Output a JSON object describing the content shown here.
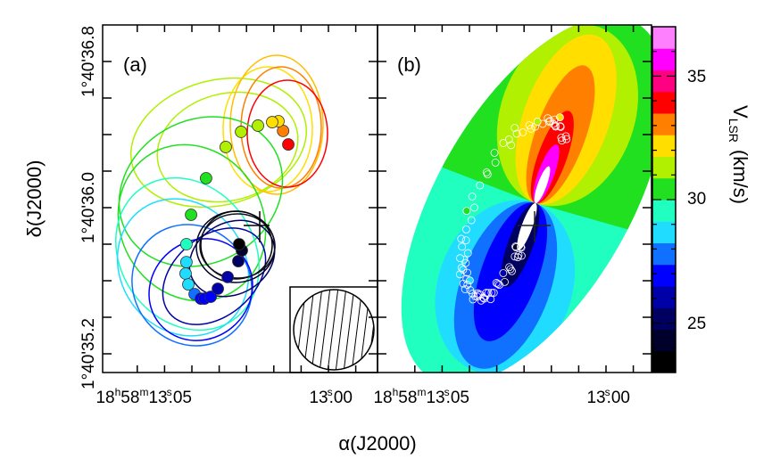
{
  "chart_data": {
    "type": "scatter",
    "panels": [
      {
        "label": "(a)",
        "description_type": "contour+scatter"
      },
      {
        "label": "(b)",
        "description_type": "filled-contour+scatter"
      }
    ],
    "xlabel": "α(J2000)",
    "ylabel": "δ(J2000)",
    "colorbar": {
      "label_main": "V",
      "label_sub": "LSR",
      "label_unit": "(km/s)",
      "range": [
        23,
        37
      ],
      "ticks": [
        25,
        30,
        35
      ],
      "tick_labels": [
        "25",
        "30",
        "35"
      ],
      "band_colors": [
        "#000000",
        "#00002a",
        "#000060",
        "#0000a8",
        "#0000ff",
        "#1070ff",
        "#20dcff",
        "#20ffc0",
        "#20e020",
        "#b0f000",
        "#ffde00",
        "#ff8000",
        "#ff0000",
        "#ff0080",
        "#ff00ff",
        "#ff80ff"
      ]
    },
    "x_axis": {
      "unit": "RA seconds (18h58m)",
      "range": [
        13.073,
        12.973
      ],
      "major_ticks": [
        {
          "value": 13.05,
          "hours": "18",
          "h": "h",
          "minutes": "58",
          "m": "m",
          "seconds": "13",
          "s": "s",
          "frac": "05"
        },
        {
          "value": 13.0,
          "seconds": "13",
          "s": "s",
          "frac": "00"
        }
      ],
      "minor_ticks": [
        13.07,
        13.06,
        13.05,
        13.04,
        13.03,
        13.02,
        13.01,
        13.0,
        12.99,
        12.98
      ]
    },
    "y_axis": {
      "unit": "Dec arcsec (1°40')",
      "range": [
        35.08,
        36.98
      ],
      "major_ticks": [
        {
          "value": 36.8,
          "label": "1°40'36.8"
        },
        {
          "value": 36.0,
          "label": "1°40'36.0"
        },
        {
          "value": 35.2,
          "label": "1°40'35.2"
        }
      ],
      "minor_ticks": [
        36.8,
        36.6,
        36.4,
        36.2,
        36.0,
        35.8,
        35.6,
        35.4,
        35.2
      ]
    },
    "panel_a_spots": [
      {
        "ra": 13.0147,
        "dec": 36.346,
        "v": 34.0
      },
      {
        "ra": 13.0166,
        "dec": 36.42,
        "v": 33.0
      },
      {
        "ra": 13.0183,
        "dec": 36.473,
        "v": 32.5
      },
      {
        "ra": 13.0206,
        "dec": 36.468,
        "v": 32.2
      },
      {
        "ra": 13.0258,
        "dec": 36.449,
        "v": 31.5
      },
      {
        "ra": 13.032,
        "dec": 36.415,
        "v": 31.3
      },
      {
        "ra": 13.0376,
        "dec": 36.332,
        "v": 31.0
      },
      {
        "ra": 13.0448,
        "dec": 36.161,
        "v": 30.3
      },
      {
        "ra": 13.0503,
        "dec": 35.961,
        "v": 30.1
      },
      {
        "ra": 13.052,
        "dec": 35.8,
        "v": 29.5
      },
      {
        "ra": 13.052,
        "dec": 35.702,
        "v": 28.8
      },
      {
        "ra": 13.0523,
        "dec": 35.639,
        "v": 28.5
      },
      {
        "ra": 13.0513,
        "dec": 35.58,
        "v": 28.3
      },
      {
        "ra": 13.049,
        "dec": 35.527,
        "v": 27.7
      },
      {
        "ra": 13.0467,
        "dec": 35.502,
        "v": 27.2
      },
      {
        "ra": 13.0454,
        "dec": 35.502,
        "v": 27.0
      },
      {
        "ra": 13.0431,
        "dec": 35.512,
        "v": 26.8
      },
      {
        "ra": 13.0405,
        "dec": 35.556,
        "v": 26.2
      },
      {
        "ra": 13.0369,
        "dec": 35.62,
        "v": 26.0
      },
      {
        "ra": 13.033,
        "dec": 35.707,
        "v": 25.2
      },
      {
        "ra": 13.0317,
        "dec": 35.766,
        "v": 24.5
      },
      {
        "ra": 13.0327,
        "dec": 35.8,
        "v": 23.5
      }
    ],
    "star_position": {
      "ra": 13.0407,
      "dec": 35.9
    }
  }
}
